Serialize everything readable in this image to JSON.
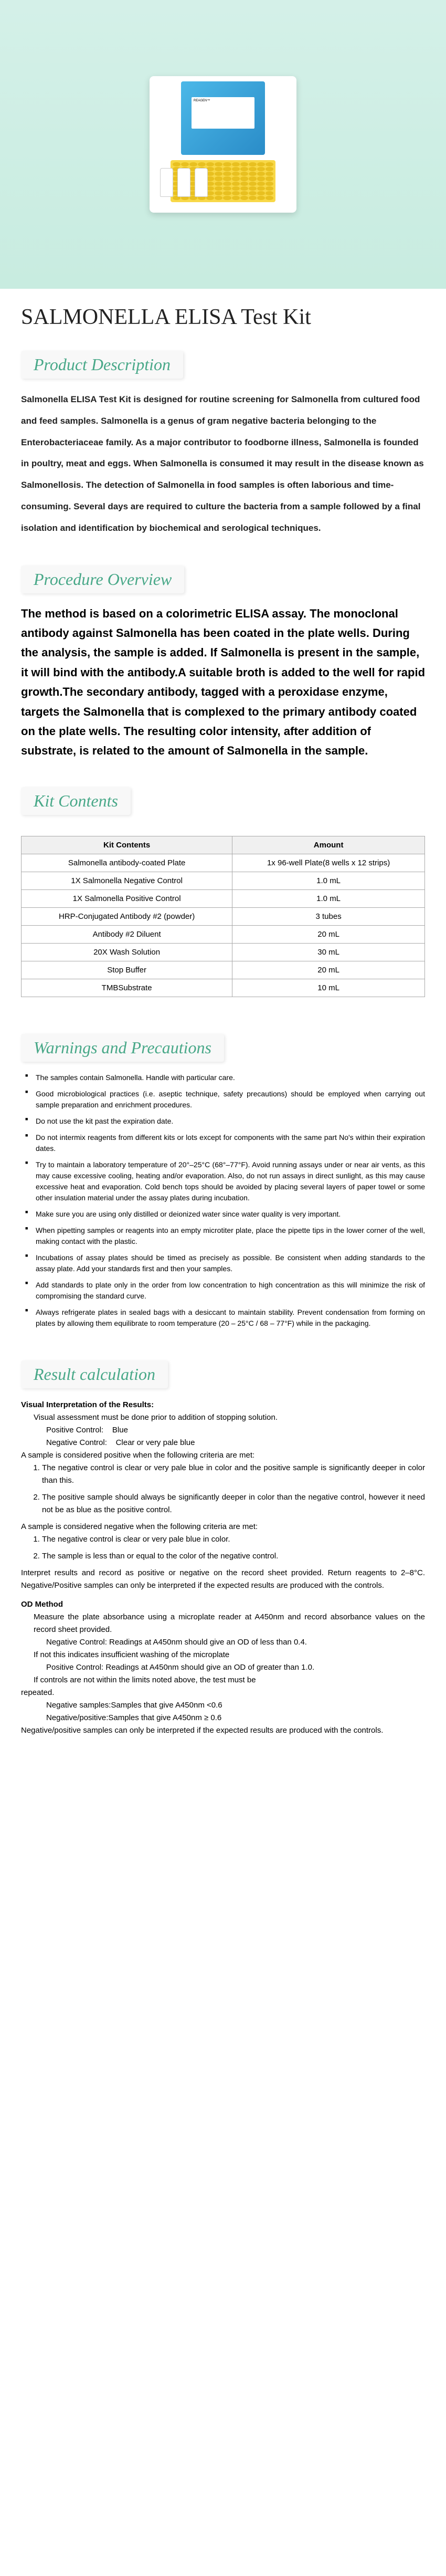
{
  "hero": {
    "brand": "REAGEN™",
    "background_color": "#d4f0e8"
  },
  "title": "SALMONELLA ELISA Test Kit",
  "sections": {
    "product_description": {
      "header": "Product Description",
      "text": "Salmonella ELISA Test Kit is designed for routine screening for Salmonella from cultured food and feed samples. Salmonella is a genus of gram negative bacteria belonging to the Enterobacteriaceae family. As a major contributor to foodborne illness, Salmonella is founded in poultry, meat and eggs. When Salmonella is consumed it may result in the disease known as Salmonellosis. The detection of Salmonella in food samples is often laborious and time-consuming. Several days are required to culture the bacteria from a sample followed by a final isolation and identification by biochemical and serological techniques."
    },
    "procedure_overview": {
      "header": "Procedure Overview",
      "text": "The method is based on a colorimetric ELISA assay. The monoclonal antibody against Salmonella has been coated in the plate wells. During the analysis, the sample is added. If Salmonella is present in the sample, it will bind with the antibody.A suitable broth is added to the well for rapid growth.The secondary antibody, tagged with a peroxidase enzyme, targets the Salmonella that is complexed to the primary antibody coated on the plate wells. The resulting color intensity, after addition of substrate, is related to the amount of Salmonella in the sample."
    },
    "kit_contents": {
      "header": "Kit Contents",
      "table": {
        "headers": [
          "Kit Contents",
          "Amount"
        ],
        "rows": [
          [
            "Salmonella antibody-coated Plate",
            "1x 96-well Plate(8 wells x 12 strips)"
          ],
          [
            "1X Salmonella Negative Control",
            "1.0 mL"
          ],
          [
            "1X Salmonella Positive Control",
            "1.0 mL"
          ],
          [
            "HRP-Conjugated Antibody #2 (powder)",
            "3 tubes"
          ],
          [
            "Antibody #2 Diluent",
            "20 mL"
          ],
          [
            "20X Wash Solution",
            "30 mL"
          ],
          [
            "Stop Buffer",
            "20 mL"
          ],
          [
            "TMBSubstrate",
            "10 mL"
          ]
        ]
      }
    },
    "warnings": {
      "header": "Warnings and Precautions",
      "items": [
        "The samples contain Salmonella. Handle with particular care.",
        "Good microbiological practices (i.e. aseptic technique, safety precautions) should be employed when carrying out sample preparation and enrichment procedures.",
        "Do not use the kit past the expiration date.",
        "Do not intermix reagents from different kits or lots except for components with the same part No's within their expiration dates.",
        "Try to maintain a laboratory temperature of 20°–25°C (68°–77°F). Avoid running assays under or near air vents, as this may cause excessive cooling, heating and/or evaporation. Also, do not run assays in direct sunlight, as this may cause excessive heat and evaporation. Cold bench tops should be avoided by placing several layers of paper towel or some other insulation material under the assay plates during incubation.",
        "Make sure you are using only distilled or deionized water since water quality is very important.",
        "When pipetting samples or reagents into an empty microtiter plate, place the pipette tips in the lower corner of the well, making contact with the plastic.",
        "Incubations of assay plates should be timed as precisely as possible. Be consistent when adding standards to the assay plate. Add your standards first and then your samples.",
        "Add standards to plate only in the order from low concentration to high concentration as this will minimize the risk of compromising the standard curve.",
        "Always refrigerate plates in sealed bags with a desiccant to maintain stability. Prevent condensation from forming on plates by allowing them equilibrate to room temperature (20 – 25°C / 68 – 77°F) while in the packaging."
      ]
    },
    "result_calculation": {
      "header": "Result calculation",
      "visual_heading": "Visual Interpretation of the Results:",
      "visual_intro": "Visual assessment must be done prior to addition of stopping solution.",
      "positive_control": "Positive Control:",
      "positive_color": "Blue",
      "negative_control": "Negative Control:",
      "negative_color": "Clear or very pale blue",
      "positive_criteria_intro": "A sample is considered positive when the following criteria are met:",
      "positive_criteria": [
        "The negative control is clear or very pale blue in color and the positive sample is significantly deeper in color than this.",
        "The positive sample should always be significantly deeper in color than the negative control, however it need not be as blue as the positive control."
      ],
      "negative_criteria_intro": "A sample is considered negative when the following criteria are met:",
      "negative_criteria": [
        "The negative control is clear or very pale blue in color.",
        "The sample is less than or equal to the color of the negative control."
      ],
      "interpret_text": "Interpret results and record as positive or negative on the record sheet provided. Return reagents to 2–8°C. Negative/Positive samples can only be interpreted if the expected results are produced with the controls.",
      "od_heading": "OD Method",
      "od_intro": "Measure the plate absorbance using a microplate reader at A450nm and record absorbance values on the record sheet provided.",
      "od_neg": "Negative Control: Readings at A450nm should give an OD of less than 0.4.",
      "od_wash": "If not this indicates insufficient washing of the microplate",
      "od_pos": "Positive Control: Readings at A450nm should give an OD of greater than 1.0.",
      "od_repeat": "If controls are not within the limits noted above, the test must be",
      "od_repeat2": "repeated.",
      "od_neg_samples": "Negative samples:Samples that give A450nm <0.6",
      "od_pos_samples": "Negative/positive:Samples that give A450nm ≥ 0.6",
      "od_final": "Negative/positive samples can only be interpreted if the expected results are produced with the controls."
    }
  },
  "colors": {
    "header_color": "#48a888",
    "hero_bg": "#d4f0e8"
  }
}
